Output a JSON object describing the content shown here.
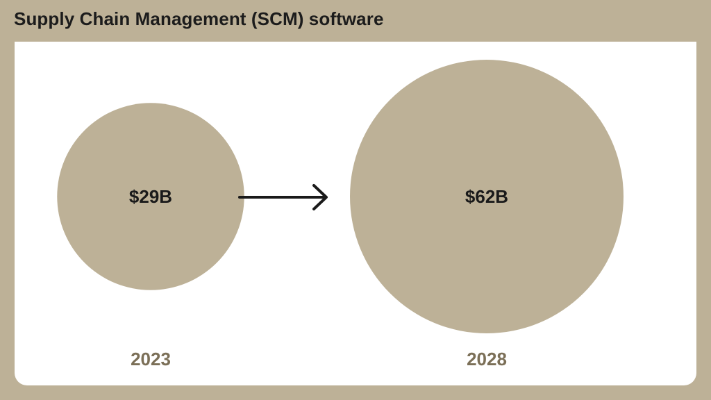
{
  "title": "Supply Chain Management (SCM) software",
  "colors": {
    "background": "#bdb197",
    "bubble": "#bdb197",
    "card": "#ffffff",
    "year_text": "#7b6f57",
    "value_text": "#1a1a1a",
    "arrow": "#1a1a1a"
  },
  "chart_data": {
    "type": "bubble",
    "title": "Supply Chain Management (SCM) software",
    "unit": "$B",
    "categories": [
      "2023",
      "2028"
    ],
    "values": [
      29,
      62
    ],
    "value_labels": [
      "$29B",
      "$62B"
    ],
    "connector": "arrow-right"
  }
}
